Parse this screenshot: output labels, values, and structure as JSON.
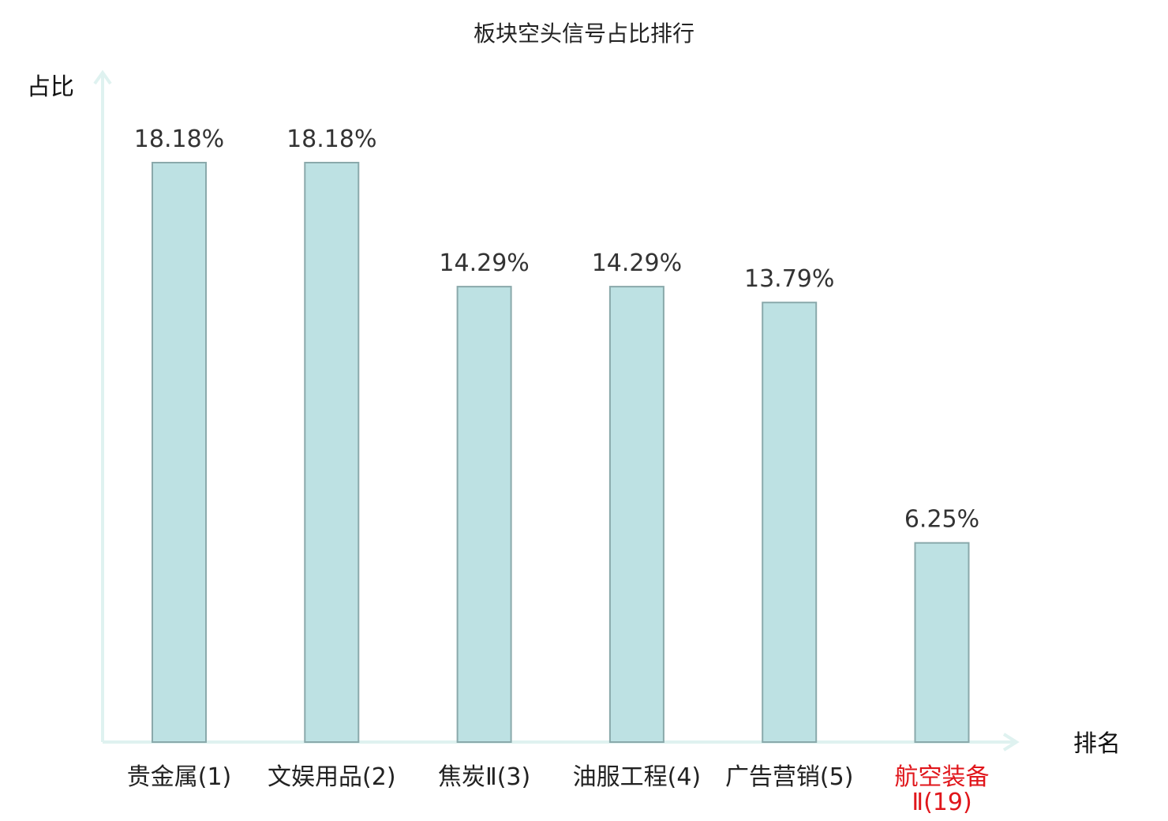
{
  "chart_data": {
    "type": "bar",
    "title": "板块空头信号占比排行",
    "ylabel": "占比",
    "xlabel": "排名",
    "categories": [
      {
        "name": "贵金属",
        "rank": "(1)",
        "highlight": false
      },
      {
        "name": "文娱用品",
        "rank": "(2)",
        "highlight": false
      },
      {
        "name": "焦炭Ⅱ",
        "rank": "(3)",
        "highlight": false
      },
      {
        "name": "油服工程",
        "rank": "(4)",
        "highlight": false
      },
      {
        "name": "广告营销",
        "rank": "(5)",
        "highlight": false
      },
      {
        "name": "航空装备",
        "rank": "Ⅱ(19)",
        "highlight": true
      }
    ],
    "values": [
      18.18,
      18.18,
      14.29,
      14.29,
      13.79,
      6.25
    ],
    "value_labels": [
      "18.18%",
      "18.18%",
      "14.29%",
      "14.29%",
      "13.79%",
      "6.25%"
    ],
    "ylim": [
      0,
      20
    ],
    "grid": false,
    "colors": {
      "bar_fill": "#bde1e3",
      "bar_stroke": "#8aa9ab",
      "axis": "#dff2f0",
      "highlight_text": "#e0161b"
    }
  }
}
